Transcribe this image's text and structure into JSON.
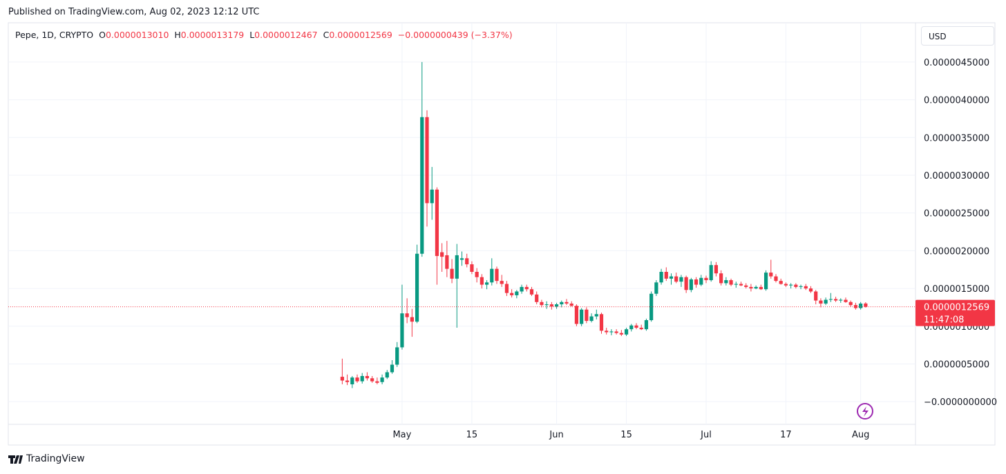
{
  "published": "Published on TradingView.com, Aug 02, 2023 12:12 UTC",
  "brand": "TradingView",
  "chart_data": {
    "type": "candlestick",
    "legend": {
      "symbol": "Pepe, 1D, CRYPTO",
      "o_label": "O",
      "o": "0.0000013010",
      "h_label": "H",
      "h": "0.0000013179",
      "l_label": "L",
      "l": "0.0000012467",
      "c_label": "C",
      "c": "0.0000012569",
      "change": "−0.0000000439 (−3.37%)"
    },
    "currency": "USD",
    "price_label": "0.0000012569",
    "countdown": "11:47:08",
    "up_color": "#089981",
    "down_color": "#f23645",
    "grid": true,
    "xlim": [
      "02-11",
      "08-12"
    ],
    "xticks": [
      {
        "value": "05-01",
        "label": "May"
      },
      {
        "value": "05-15",
        "label": "15"
      },
      {
        "value": "06-01",
        "label": "Jun"
      },
      {
        "value": "06-15",
        "label": "15"
      },
      {
        "value": "07-01",
        "label": "Jul"
      },
      {
        "value": "07-17",
        "label": "17"
      },
      {
        "value": "08-01",
        "label": "Aug"
      }
    ],
    "ylim": [
      -3e-07,
      5.02e-06
    ],
    "yticks": [
      {
        "value": 0,
        "label": "−0.0000000000"
      },
      {
        "value": 5e-07,
        "label": "0.0000005000"
      },
      {
        "value": 1e-06,
        "label": "0.0000010000"
      },
      {
        "value": 1.5e-06,
        "label": "0.0000015000"
      },
      {
        "value": 2e-06,
        "label": "0.0000020000"
      },
      {
        "value": 2.5e-06,
        "label": "0.0000025000"
      },
      {
        "value": 3e-06,
        "label": "0.0000030000"
      },
      {
        "value": 3.5e-06,
        "label": "0.0000035000"
      },
      {
        "value": 4e-06,
        "label": "0.0000040000"
      },
      {
        "value": 4.5e-06,
        "label": "0.0000045000"
      }
    ],
    "x": [
      "04-19",
      "04-20",
      "04-21",
      "04-22",
      "04-23",
      "04-24",
      "04-25",
      "04-26",
      "04-27",
      "04-28",
      "04-29",
      "04-30",
      "05-01",
      "05-02",
      "05-03",
      "05-04",
      "05-05",
      "05-06",
      "05-07",
      "05-08",
      "05-09",
      "05-10",
      "05-11",
      "05-12",
      "05-13",
      "05-14",
      "05-15",
      "05-16",
      "05-17",
      "05-18",
      "05-19",
      "05-20",
      "05-21",
      "05-22",
      "05-23",
      "05-24",
      "05-25",
      "05-26",
      "05-27",
      "05-28",
      "05-29",
      "05-30",
      "05-31",
      "06-01",
      "06-02",
      "06-03",
      "06-04",
      "06-05",
      "06-06",
      "06-07",
      "06-08",
      "06-09",
      "06-10",
      "06-11",
      "06-12",
      "06-13",
      "06-14",
      "06-15",
      "06-16",
      "06-17",
      "06-18",
      "06-19",
      "06-20",
      "06-21",
      "06-22",
      "06-23",
      "06-24",
      "06-25",
      "06-26",
      "06-27",
      "06-28",
      "06-29",
      "06-30",
      "07-01",
      "07-02",
      "07-03",
      "07-04",
      "07-05",
      "07-06",
      "07-07",
      "07-08",
      "07-09",
      "07-10",
      "07-11",
      "07-12",
      "07-13",
      "07-14",
      "07-15",
      "07-16",
      "07-17",
      "07-18",
      "07-19",
      "07-20",
      "07-21",
      "07-22",
      "07-23",
      "07-24",
      "07-25",
      "07-26",
      "07-27",
      "07-28",
      "07-29",
      "07-30",
      "07-31",
      "08-01",
      "08-02"
    ],
    "ohlc": [
      [
        3.3e-07,
        5.7e-07,
        2.3e-07,
        2.8e-07
      ],
      [
        2.8e-07,
        3.6e-07,
        2.2e-07,
        2.6e-07
      ],
      [
        2.3e-07,
        3.4e-07,
        1.8e-07,
        3.2e-07
      ],
      [
        3.2e-07,
        3.6e-07,
        2.5e-07,
        2.7e-07
      ],
      [
        2.7e-07,
        3.8e-07,
        2.4e-07,
        3.4e-07
      ],
      [
        3.4e-07,
        3.9e-07,
        2.8e-07,
        3.1e-07
      ],
      [
        3.1e-07,
        3.4e-07,
        2.5e-07,
        2.7e-07
      ],
      [
        2.7e-07,
        3.2e-07,
        2.3e-07,
        2.5e-07
      ],
      [
        2.6e-07,
        3.6e-07,
        2.3e-07,
        3.2e-07
      ],
      [
        3.2e-07,
        4.2e-07,
        3e-07,
        3.9e-07
      ],
      [
        3.9e-07,
        5.5e-07,
        3.7e-07,
        4.9e-07
      ],
      [
        4.9e-07,
        7.9e-07,
        4.6e-07,
        7.2e-07
      ],
      [
        7.2e-07,
        1.55e-06,
        6.9e-07,
        1.17e-06
      ],
      [
        1.17e-06,
        1.37e-06,
        1.04e-06,
        1.12e-06
      ],
      [
        1.12e-06,
        1.23e-06,
        8.6e-07,
        1.06e-06
      ],
      [
        1.06e-06,
        2.08e-06,
        1.04e-06,
        1.96e-06
      ],
      [
        1.96e-06,
        4.5e-06,
        1.92e-06,
        3.77e-06
      ],
      [
        3.77e-06,
        3.86e-06,
        2.32e-06,
        2.63e-06
      ],
      [
        2.63e-06,
        3.11e-06,
        2.41e-06,
        2.81e-06
      ],
      [
        2.81e-06,
        2.84e-06,
        1.55e-06,
        1.93e-06
      ],
      [
        1.98e-06,
        2.1e-06,
        1.72e-06,
        1.92e-06
      ],
      [
        1.94e-06,
        2.13e-06,
        1.65e-06,
        1.76e-06
      ],
      [
        1.76e-06,
        1.89e-06,
        1.57e-06,
        1.63e-06
      ],
      [
        1.63e-06,
        2.09e-06,
        9.8e-07,
        1.94e-06
      ],
      [
        1.88e-06,
        1.99e-06,
        1.8e-06,
        1.9e-06
      ],
      [
        1.9e-06,
        1.96e-06,
        1.78e-06,
        1.82e-06
      ],
      [
        1.82e-06,
        1.86e-06,
        1.69e-06,
        1.72e-06
      ],
      [
        1.72e-06,
        1.77e-06,
        1.58e-06,
        1.65e-06
      ],
      [
        1.65e-06,
        1.69e-06,
        1.5e-06,
        1.55e-06
      ],
      [
        1.55e-06,
        1.61e-06,
        1.49e-06,
        1.58e-06
      ],
      [
        1.58e-06,
        1.9e-06,
        1.54e-06,
        1.76e-06
      ],
      [
        1.76e-06,
        1.79e-06,
        1.56e-06,
        1.6e-06
      ],
      [
        1.6e-06,
        1.68e-06,
        1.52e-06,
        1.56e-06
      ],
      [
        1.56e-06,
        1.6e-06,
        1.4e-06,
        1.44e-06
      ],
      [
        1.44e-06,
        1.49e-06,
        1.38e-06,
        1.41e-06
      ],
      [
        1.41e-06,
        1.48e-06,
        1.37e-06,
        1.46e-06
      ],
      [
        1.46e-06,
        1.55e-06,
        1.43e-06,
        1.52e-06
      ],
      [
        1.52e-06,
        1.55e-06,
        1.46e-06,
        1.49e-06
      ],
      [
        1.49e-06,
        1.52e-06,
        1.4e-06,
        1.42e-06
      ],
      [
        1.42e-06,
        1.46e-06,
        1.29e-06,
        1.32e-06
      ],
      [
        1.32e-06,
        1.35e-06,
        1.25e-06,
        1.28e-06
      ],
      [
        1.28e-06,
        1.33e-06,
        1.23e-06,
        1.29e-06
      ],
      [
        1.29e-06,
        1.32e-06,
        1.22e-06,
        1.26e-06
      ],
      [
        1.26e-06,
        1.31e-06,
        1.23e-06,
        1.29e-06
      ],
      [
        1.29e-06,
        1.34e-06,
        1.25e-06,
        1.32e-06
      ],
      [
        1.32e-06,
        1.36e-06,
        1.28e-06,
        1.3e-06
      ],
      [
        1.3e-06,
        1.33e-06,
        1.26e-06,
        1.27e-06
      ],
      [
        1.27e-06,
        1.29e-06,
        1e-06,
        1.03e-06
      ],
      [
        1.03e-06,
        1.24e-06,
        1e-06,
        1.22e-06
      ],
      [
        1.22e-06,
        1.25e-06,
        1.04e-06,
        1.07e-06
      ],
      [
        1.07e-06,
        1.17e-06,
        1.05e-06,
        1.13e-06
      ],
      [
        1.13e-06,
        1.22e-06,
        1.09e-06,
        1.16e-06
      ],
      [
        1.16e-06,
        1.18e-06,
        9e-07,
        9.4e-07
      ],
      [
        9.4e-07,
        9.8e-07,
        8.9e-07,
        9.2e-07
      ],
      [
        9.2e-07,
        9.6e-07,
        8.8e-07,
        9.3e-07
      ],
      [
        9.3e-07,
        9.6e-07,
        8.9e-07,
        9.1e-07
      ],
      [
        9.1e-07,
        9.5e-07,
        8.7e-07,
        8.9e-07
      ],
      [
        8.9e-07,
        9.8e-07,
        8.7e-07,
        9.6e-07
      ],
      [
        9.6e-07,
        1.03e-06,
        9.3e-07,
        1.01e-06
      ],
      [
        1.01e-06,
        1.04e-06,
        9.6e-07,
        9.8e-07
      ],
      [
        9.8e-07,
        1.02e-06,
        9.5e-07,
        9.6e-07
      ],
      [
        9.6e-07,
        1.1e-06,
        9.4e-07,
        1.08e-06
      ],
      [
        1.08e-06,
        1.46e-06,
        1.06e-06,
        1.43e-06
      ],
      [
        1.43e-06,
        1.61e-06,
        1.4e-06,
        1.58e-06
      ],
      [
        1.58e-06,
        1.76e-06,
        1.55e-06,
        1.72e-06
      ],
      [
        1.72e-06,
        1.78e-06,
        1.6e-06,
        1.63e-06
      ],
      [
        1.63e-06,
        1.7e-06,
        1.55e-06,
        1.66e-06
      ],
      [
        1.66e-06,
        1.71e-06,
        1.57e-06,
        1.59e-06
      ],
      [
        1.59e-06,
        1.68e-06,
        1.52e-06,
        1.65e-06
      ],
      [
        1.65e-06,
        1.67e-06,
        1.44e-06,
        1.48e-06
      ],
      [
        1.48e-06,
        1.64e-06,
        1.45e-06,
        1.62e-06
      ],
      [
        1.62e-06,
        1.65e-06,
        1.51e-06,
        1.55e-06
      ],
      [
        1.55e-06,
        1.68e-06,
        1.53e-06,
        1.64e-06
      ],
      [
        1.64e-06,
        1.67e-06,
        1.57e-06,
        1.61e-06
      ],
      [
        1.61e-06,
        1.86e-06,
        1.59e-06,
        1.81e-06
      ],
      [
        1.81e-06,
        1.85e-06,
        1.66e-06,
        1.7e-06
      ],
      [
        1.7e-06,
        1.74e-06,
        1.54e-06,
        1.57e-06
      ],
      [
        1.57e-06,
        1.65e-06,
        1.54e-06,
        1.61e-06
      ],
      [
        1.61e-06,
        1.63e-06,
        1.53e-06,
        1.55e-06
      ],
      [
        1.55e-06,
        1.59e-06,
        1.51e-06,
        1.56e-06
      ],
      [
        1.56e-06,
        1.59e-06,
        1.53e-06,
        1.54e-06
      ],
      [
        1.54e-06,
        1.57e-06,
        1.5e-06,
        1.52e-06
      ],
      [
        1.52e-06,
        1.56e-06,
        1.46e-06,
        1.5e-06
      ],
      [
        1.5e-06,
        1.54e-06,
        1.49e-06,
        1.52e-06
      ],
      [
        1.52e-06,
        1.55e-06,
        1.48e-06,
        1.49e-06
      ],
      [
        1.49e-06,
        1.74e-06,
        1.47e-06,
        1.71e-06
      ],
      [
        1.71e-06,
        1.88e-06,
        1.63e-06,
        1.66e-06
      ],
      [
        1.66e-06,
        1.69e-06,
        1.58e-06,
        1.6e-06
      ],
      [
        1.6e-06,
        1.63e-06,
        1.55e-06,
        1.56e-06
      ],
      [
        1.56e-06,
        1.58e-06,
        1.52e-06,
        1.54e-06
      ],
      [
        1.54e-06,
        1.57e-06,
        1.5e-06,
        1.55e-06
      ],
      [
        1.55e-06,
        1.57e-06,
        1.5e-06,
        1.52e-06
      ],
      [
        1.52e-06,
        1.55e-06,
        1.49e-06,
        1.53e-06
      ],
      [
        1.53e-06,
        1.56e-06,
        1.48e-06,
        1.5e-06
      ],
      [
        1.5e-06,
        1.53e-06,
        1.44e-06,
        1.46e-06
      ],
      [
        1.46e-06,
        1.48e-06,
        1.29e-06,
        1.34e-06
      ],
      [
        1.34e-06,
        1.37e-06,
        1.25e-06,
        1.3e-06
      ],
      [
        1.3e-06,
        1.38e-06,
        1.28e-06,
        1.35e-06
      ],
      [
        1.35e-06,
        1.44e-06,
        1.32e-06,
        1.36e-06
      ],
      [
        1.36e-06,
        1.39e-06,
        1.32e-06,
        1.34e-06
      ],
      [
        1.34e-06,
        1.37e-06,
        1.31e-06,
        1.35e-06
      ],
      [
        1.35e-06,
        1.38e-06,
        1.31e-06,
        1.32e-06
      ],
      [
        1.32e-06,
        1.34e-06,
        1.26e-06,
        1.28e-06
      ],
      [
        1.28e-06,
        1.31e-06,
        1.22e-06,
        1.24e-06
      ],
      [
        1.24e-06,
        1.32e-06,
        1.22e-06,
        1.3e-06
      ],
      [
        1.301e-06,
        1.3179e-06,
        1.2467e-06,
        1.2569e-06
      ]
    ]
  }
}
